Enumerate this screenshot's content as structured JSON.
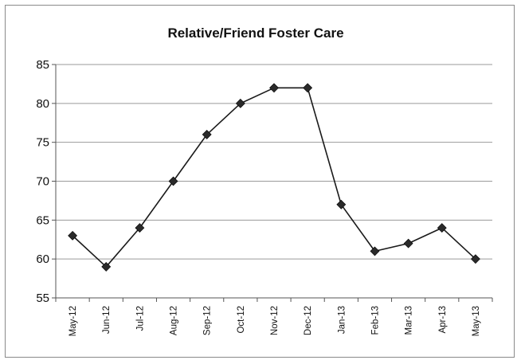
{
  "chart_data": {
    "type": "line",
    "title": "Relative/Friend Foster Care",
    "xlabel": "",
    "ylabel": "",
    "categories": [
      "May-12",
      "Jun-12",
      "Jul-12",
      "Aug-12",
      "Sep-12",
      "Oct-12",
      "Nov-12",
      "Dec-12",
      "Jan-13",
      "Feb-13",
      "Mar-13",
      "Apr-13",
      "May-13"
    ],
    "series": [
      {
        "values": [
          63,
          59,
          64,
          70,
          76,
          80,
          82,
          82,
          67,
          61,
          62,
          64,
          60
        ]
      }
    ],
    "ylim": [
      55,
      85
    ],
    "yticks": [
      "55",
      "60",
      "65",
      "70",
      "75",
      "80",
      "85"
    ],
    "grid": true,
    "legend": "none",
    "colors": {
      "line": "#1a1a1a",
      "marker": "#2a2a2a",
      "grid": "#9a9a9a",
      "axis": "#555555"
    }
  }
}
